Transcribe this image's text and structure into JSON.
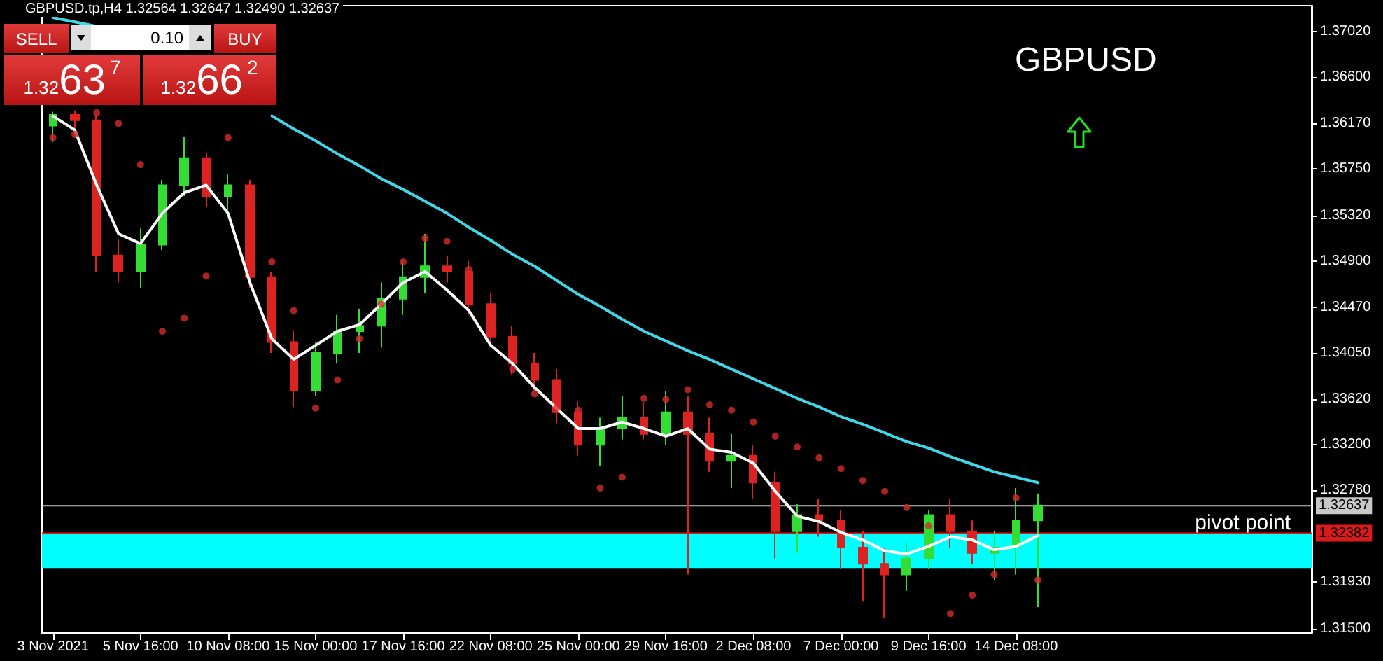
{
  "chart_data": {
    "type": "candlestick",
    "title": "GBPUSD",
    "categories": [
      "3 Nov 2021",
      null,
      null,
      null,
      "5 Nov 16:00",
      null,
      null,
      null,
      "10 Nov 08:00",
      null,
      null,
      null,
      "15 Nov 00:00",
      null,
      null,
      null,
      "17 Nov 16:00",
      null,
      null,
      null,
      "22 Nov 08:00",
      null,
      null,
      null,
      "25 Nov 00:00",
      null,
      null,
      null,
      "29 Nov 16:00",
      null,
      null,
      null,
      "2 Dec 08:00",
      null,
      null,
      null,
      "7 Dec 00:00",
      null,
      null,
      null,
      "9 Dec 16:00",
      null,
      null,
      null,
      "14 Dec 08:00",
      null,
      null,
      null,
      null,
      null,
      null,
      null,
      null,
      null,
      null,
      null,
      null,
      null
    ],
    "ohlc": [
      [
        1.3615,
        1.3628,
        1.36,
        1.3625
      ],
      [
        1.3625,
        1.3629,
        1.3605,
        1.362
      ],
      [
        1.362,
        1.3625,
        1.348,
        1.3495
      ],
      [
        1.3495,
        1.351,
        1.347,
        1.348
      ],
      [
        1.348,
        1.352,
        1.3465,
        1.3505
      ],
      [
        1.3505,
        1.3565,
        1.35,
        1.356
      ],
      [
        1.356,
        1.3605,
        1.355,
        1.3585
      ],
      [
        1.3585,
        1.359,
        1.354,
        1.355
      ],
      [
        1.355,
        1.357,
        1.3535,
        1.356
      ],
      [
        1.356,
        1.3565,
        1.3465,
        1.3475
      ],
      [
        1.3475,
        1.348,
        1.3405,
        1.3415
      ],
      [
        1.3415,
        1.3425,
        1.3355,
        1.337
      ],
      [
        1.337,
        1.3415,
        1.3365,
        1.3405
      ],
      [
        1.3405,
        1.344,
        1.3395,
        1.3425
      ],
      [
        1.3425,
        1.3445,
        1.3405,
        1.343
      ],
      [
        1.343,
        1.347,
        1.341,
        1.3455
      ],
      [
        1.3455,
        1.349,
        1.344,
        1.3475
      ],
      [
        1.3475,
        1.3515,
        1.346,
        1.3485
      ],
      [
        1.3485,
        1.3495,
        1.347,
        1.348
      ],
      [
        1.348,
        1.349,
        1.344,
        1.345
      ],
      [
        1.345,
        1.346,
        1.341,
        1.342
      ],
      [
        1.342,
        1.343,
        1.3385,
        1.3395
      ],
      [
        1.3395,
        1.3405,
        1.337,
        1.338
      ],
      [
        1.338,
        1.339,
        1.334,
        1.335
      ],
      [
        1.335,
        1.336,
        1.331,
        1.332
      ],
      [
        1.332,
        1.3345,
        1.33,
        1.3335
      ],
      [
        1.3335,
        1.3365,
        1.3325,
        1.3345
      ],
      [
        1.3345,
        1.336,
        1.3325,
        1.333
      ],
      [
        1.333,
        1.337,
        1.332,
        1.335
      ],
      [
        1.335,
        1.3365,
        1.32,
        1.333
      ],
      [
        1.333,
        1.3345,
        1.3295,
        1.3305
      ],
      [
        1.3305,
        1.333,
        1.328,
        1.331
      ],
      [
        1.331,
        1.332,
        1.327,
        1.3285
      ],
      [
        1.3285,
        1.3295,
        1.3215,
        1.324
      ],
      [
        1.324,
        1.3265,
        1.322,
        1.3255
      ],
      [
        1.3255,
        1.327,
        1.3235,
        1.325
      ],
      [
        1.325,
        1.326,
        1.3205,
        1.3225
      ],
      [
        1.3225,
        1.324,
        1.3175,
        1.321
      ],
      [
        1.321,
        1.3225,
        1.316,
        1.32
      ],
      [
        1.32,
        1.323,
        1.3185,
        1.3215
      ],
      [
        1.3215,
        1.326,
        1.3205,
        1.3255
      ],
      [
        1.3255,
        1.327,
        1.3225,
        1.324
      ],
      [
        1.324,
        1.325,
        1.321,
        1.322
      ],
      [
        1.322,
        1.324,
        1.3195,
        1.3225
      ],
      [
        1.3225,
        1.328,
        1.32,
        1.325
      ],
      [
        1.325,
        1.3275,
        1.317,
        1.3264
      ],
      null,
      null,
      null,
      null,
      null,
      null,
      null,
      null,
      null,
      null,
      null,
      null
    ],
    "series": [
      {
        "type": "line",
        "color": "#ffffff",
        "values": [
          1.3624,
          1.3611,
          1.356,
          1.3515,
          1.3506,
          1.3534,
          1.3553,
          1.356,
          1.3534,
          1.347,
          1.3418,
          1.3399,
          1.3412,
          1.3425,
          1.3431,
          1.345,
          1.347,
          1.348,
          1.3463,
          1.3444,
          1.3412,
          1.3395,
          1.3373,
          1.3354,
          1.3335,
          1.3335,
          1.3341,
          1.3335,
          1.3328,
          1.3335,
          1.3316,
          1.3313,
          1.3303,
          1.3277,
          1.3254,
          1.3249,
          1.3239,
          1.3232,
          1.3222,
          1.3219,
          1.3226,
          1.3235,
          1.3232,
          1.3223,
          1.3226,
          1.3236,
          null,
          null,
          null,
          null,
          null,
          null,
          null,
          null,
          null,
          null,
          null,
          null
        ]
      },
      {
        "type": "line",
        "color": "#40d8e8",
        "values": [
          1.3715,
          1.3711,
          1.3707,
          null,
          null,
          null,
          null,
          null,
          null,
          null,
          1.3624,
          1.3612,
          1.3601,
          1.3589,
          1.3578,
          1.3566,
          1.3556,
          1.3545,
          1.3534,
          1.3521,
          1.3509,
          1.3496,
          1.3485,
          1.3472,
          1.3459,
          1.3448,
          1.3436,
          1.3425,
          1.3416,
          1.3407,
          1.3399,
          1.339,
          1.3381,
          1.3372,
          1.3363,
          1.3355,
          1.3346,
          1.3339,
          1.3331,
          1.3323,
          1.3317,
          1.3309,
          1.3302,
          1.3295,
          1.329,
          1.3285,
          null,
          null,
          null,
          null,
          null,
          null,
          null,
          null,
          null,
          null,
          null,
          null
        ]
      },
      {
        "type": "scatter",
        "color": "#d42a2a",
        "marker": "circle",
        "values": [
          1.3604,
          1.3607,
          1.3627,
          1.3617,
          1.3579,
          1.3425,
          1.3437,
          1.3476,
          1.3604,
          1.3547,
          1.3489,
          1.3444,
          1.3354,
          1.338,
          1.3418,
          1.345,
          1.3489,
          1.3511,
          1.3508,
          1.3482,
          1.3431,
          1.339,
          1.3367,
          1.3354,
          1.3352,
          1.328,
          1.329,
          1.3363,
          1.3362,
          1.3371,
          1.3357,
          1.3352,
          1.3341,
          1.3328,
          1.3318,
          1.3308,
          1.3298,
          1.3287,
          1.3277,
          1.3262,
          1.3245,
          1.3164,
          1.3181,
          1.32,
          1.3271,
          1.3195,
          null,
          null,
          null,
          null,
          null,
          null,
          null,
          null,
          null,
          null,
          null,
          null
        ]
      }
    ],
    "ylim": [
      1.3146,
      1.3726
    ],
    "yticks": [
      {
        "value": 1.3702,
        "label": "1.37020"
      },
      {
        "value": 1.366,
        "label": "1.36600"
      },
      {
        "value": 1.3617,
        "label": "1.36170"
      },
      {
        "value": 1.3575,
        "label": "1.35750"
      },
      {
        "value": 1.3532,
        "label": "1.35320"
      },
      {
        "value": 1.349,
        "label": "1.34900"
      },
      {
        "value": 1.3447,
        "label": "1.34470"
      },
      {
        "value": 1.3405,
        "label": "1.34050"
      },
      {
        "value": 1.3362,
        "label": "1.33620"
      },
      {
        "value": 1.332,
        "label": "1.33200"
      },
      {
        "value": 1.3278,
        "label": "1.32780"
      },
      {
        "value": 1.3193,
        "label": "1.31930"
      },
      {
        "value": 1.315,
        "label": "1.31500"
      }
    ],
    "ref_lines": [
      {
        "axis": "y",
        "value": 1.32637,
        "label": "1.32637",
        "color": "#c8c8c8"
      },
      {
        "axis": "y",
        "value": 1.32382,
        "label": "1.32382",
        "color": "#dd1a1a"
      }
    ],
    "bands": [
      {
        "axis": "y",
        "from": 1.3206,
        "to": 1.32382,
        "label": "pivot point",
        "color": "#00ffff"
      }
    ],
    "annotations": [
      "GBPUSD.tp,H4 1.32564 1.32647 1.32490 1.32637",
      "SELL",
      "0.10",
      "BUY",
      "1.3263$^{7}$",
      "1.3266$^{2}$"
    ]
  }
}
